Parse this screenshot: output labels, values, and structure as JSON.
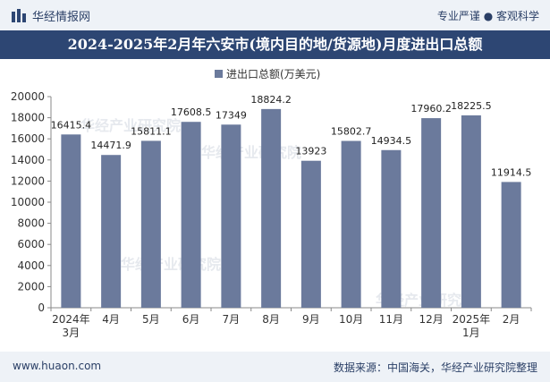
{
  "header": {
    "brand": "华经情报网",
    "tagline": "专业严谨 ● 客观科学"
  },
  "title": "2024-2025年2月年六安市(境内目的地/货源地)月度进出口总额",
  "footer": {
    "url": "www.huaon.com",
    "source": "数据来源：中国海关，华经产业研究院整理"
  },
  "watermark": "华经产业研究院",
  "colors": {
    "bar": "#6b7a9c",
    "title_bg": "#2d4673",
    "bar_bg": "#eef2f7"
  },
  "chart_data": {
    "type": "bar",
    "categories": [
      "2024年3月",
      "4月",
      "5月",
      "6月",
      "7月",
      "8月",
      "9月",
      "10月",
      "11月",
      "12月",
      "2025年1月",
      "2月"
    ],
    "series": [
      {
        "name": "进出口总额(万美元)",
        "values": [
          16415.4,
          14471.9,
          15811.1,
          17608.5,
          17349,
          18824.2,
          13923,
          15802.7,
          14934.5,
          17960.2,
          18225.5,
          11914.5
        ]
      }
    ],
    "value_labels": [
      "16415.4",
      "14471.9",
      "15811.1",
      "17608.5",
      "17349",
      "18824.2",
      "13923",
      "15802.7",
      "14934.5",
      "17960.2",
      "18225.5",
      "11914.5"
    ],
    "yticks": [
      "0",
      "2000",
      "4000",
      "6000",
      "8000",
      "10000",
      "12000",
      "14000",
      "16000",
      "18000",
      "20000"
    ],
    "ylim": [
      0,
      20000
    ],
    "legend_position": "top-center",
    "grid": false
  }
}
